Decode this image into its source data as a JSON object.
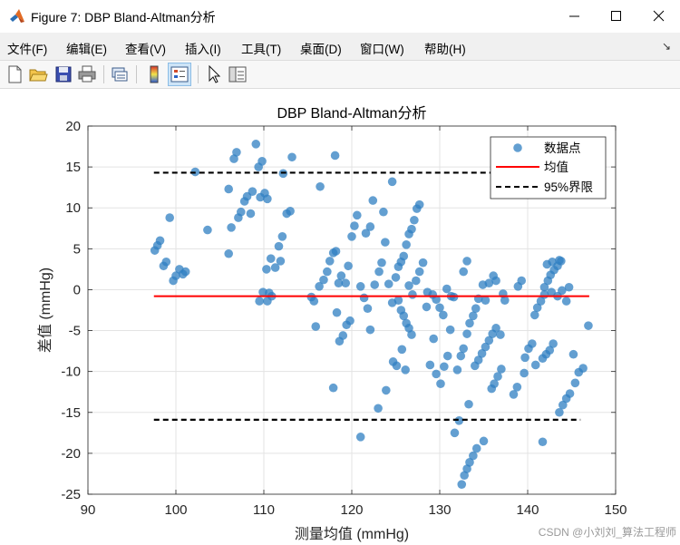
{
  "window": {
    "title": "Figure 7: DBP Bland-Altman分析"
  },
  "menu": {
    "items": [
      "文件(F)",
      "编辑(E)",
      "查看(V)",
      "插入(I)",
      "工具(T)",
      "桌面(D)",
      "窗口(W)",
      "帮助(H)"
    ]
  },
  "toolbar": {
    "icons": [
      "new-figure-icon",
      "open-file-icon",
      "save-icon",
      "print-icon",
      "link-axes-icon",
      "colorbar-icon",
      "legend-icon",
      "pointer-icon",
      "property-inspector-icon"
    ]
  },
  "watermark": "CSDN @小刘刘_算法工程师",
  "colors": {
    "points": "#2f7fc1",
    "mean_line": "#ff0000",
    "limit_lines": "#000000"
  },
  "chart_data": {
    "type": "scatter",
    "title": "DBP Bland-Altman分析",
    "xlabel": "测量均值 (mmHg)",
    "ylabel": "差值 (mmHg)",
    "xlim": [
      90,
      150
    ],
    "ylim": [
      -25,
      20
    ],
    "xticks": [
      90,
      100,
      110,
      120,
      130,
      140,
      150
    ],
    "yticks": [
      -25,
      -20,
      -15,
      -10,
      -5,
      0,
      5,
      10,
      15,
      20
    ],
    "grid": true,
    "legend_position": "top-right",
    "legend": [
      "数据点",
      "均值",
      "95%界限"
    ],
    "mean": {
      "value": -0.8,
      "x_range": [
        97.5,
        147
      ]
    },
    "limits": {
      "upper": 14.3,
      "lower": -15.9,
      "x_range": [
        97.5,
        146
      ]
    },
    "series": [
      {
        "name": "数据点",
        "points": [
          [
            97.6,
            4.8
          ],
          [
            97.9,
            5.4
          ],
          [
            98.2,
            6
          ],
          [
            98.6,
            2.9
          ],
          [
            98.9,
            3.4
          ],
          [
            99.3,
            8.8
          ],
          [
            99.7,
            1.1
          ],
          [
            100,
            1.7
          ],
          [
            100.4,
            2.5
          ],
          [
            100.8,
            1.9
          ],
          [
            101.1,
            2.2
          ],
          [
            102.2,
            14.4
          ],
          [
            103.6,
            7.3
          ],
          [
            106,
            12.3
          ],
          [
            106,
            4.4
          ],
          [
            106.3,
            7.6
          ],
          [
            106.6,
            16
          ],
          [
            106.9,
            16.8
          ],
          [
            107.1,
            8.8
          ],
          [
            107.4,
            9.5
          ],
          [
            107.8,
            10.8
          ],
          [
            108.1,
            11.4
          ],
          [
            108.5,
            9.3
          ],
          [
            108.7,
            12
          ],
          [
            109.1,
            17.8
          ],
          [
            109.4,
            15
          ],
          [
            109.6,
            11.3
          ],
          [
            109.8,
            15.7
          ],
          [
            110.1,
            11.8
          ],
          [
            110.4,
            11.1
          ],
          [
            109.5,
            -1.4
          ],
          [
            109.9,
            -0.3
          ],
          [
            110.4,
            -1.4
          ],
          [
            110.6,
            -0.4
          ],
          [
            110.9,
            -0.8
          ],
          [
            110.3,
            2.5
          ],
          [
            110.8,
            3.8
          ],
          [
            111.3,
            2.7
          ],
          [
            111.7,
            5.3
          ],
          [
            112.1,
            6.5
          ],
          [
            111.9,
            3.5
          ],
          [
            112.2,
            14.2
          ],
          [
            112.6,
            9.3
          ],
          [
            113,
            9.6
          ],
          [
            113.2,
            16.2
          ],
          [
            115.4,
            -0.9
          ],
          [
            115.7,
            -1.4
          ],
          [
            115.9,
            -4.5
          ],
          [
            116.3,
            0.4
          ],
          [
            116.8,
            1.2
          ],
          [
            117.2,
            2.2
          ],
          [
            117.5,
            3.5
          ],
          [
            117.9,
            4.5
          ],
          [
            118.2,
            4.7
          ],
          [
            118.5,
            0.8
          ],
          [
            118.8,
            1.7
          ],
          [
            118.1,
            16.4
          ],
          [
            116.4,
            12.6
          ],
          [
            117.9,
            -12
          ],
          [
            118.3,
            -2.8
          ],
          [
            118.6,
            -6.3
          ],
          [
            119,
            -5.6
          ],
          [
            119.4,
            -4.3
          ],
          [
            119.8,
            -3.8
          ],
          [
            119.3,
            0.8
          ],
          [
            119.6,
            2.9
          ],
          [
            120,
            6.5
          ],
          [
            120.3,
            7.8
          ],
          [
            120.6,
            9.1
          ],
          [
            121,
            0.4
          ],
          [
            121.4,
            -1
          ],
          [
            121.8,
            -2.3
          ],
          [
            122.1,
            -4.9
          ],
          [
            121,
            -18
          ],
          [
            121.6,
            6.9
          ],
          [
            122.1,
            7.7
          ],
          [
            122.4,
            10.9
          ],
          [
            122.6,
            0.6
          ],
          [
            123.1,
            2.2
          ],
          [
            123.4,
            3.3
          ],
          [
            123.6,
            9.5
          ],
          [
            123.8,
            5.8
          ],
          [
            124.2,
            0.7
          ],
          [
            124.6,
            -1.6
          ],
          [
            123,
            -14.5
          ],
          [
            123.9,
            -12.3
          ],
          [
            124.7,
            -8.8
          ],
          [
            125.1,
            -9.3
          ],
          [
            124.6,
            13.2
          ],
          [
            125,
            1.5
          ],
          [
            125.3,
            2.8
          ],
          [
            125.6,
            3.4
          ],
          [
            125.9,
            4.1
          ],
          [
            126.2,
            5.5
          ],
          [
            126.5,
            6.8
          ],
          [
            126.8,
            7.4
          ],
          [
            127.1,
            8.5
          ],
          [
            127.4,
            9.9
          ],
          [
            127.7,
            10.4
          ],
          [
            125.3,
            -1.3
          ],
          [
            125.6,
            -2.5
          ],
          [
            125.9,
            -3.2
          ],
          [
            126.2,
            -4.1
          ],
          [
            126.5,
            -4.7
          ],
          [
            126.8,
            -5.5
          ],
          [
            125.7,
            -7.3
          ],
          [
            126.1,
            -9.8
          ],
          [
            126.5,
            0.5
          ],
          [
            126.9,
            -0.6
          ],
          [
            127.3,
            1.1
          ],
          [
            127.7,
            2.2
          ],
          [
            128.1,
            3.3
          ],
          [
            128.5,
            -2.1
          ],
          [
            128.9,
            -9.2
          ],
          [
            129.3,
            -6
          ],
          [
            128.6,
            -0.3
          ],
          [
            129.2,
            -0.6
          ],
          [
            129.6,
            -1.2
          ],
          [
            130,
            -2.2
          ],
          [
            130.4,
            -3.1
          ],
          [
            129.6,
            -10.3
          ],
          [
            130.1,
            -11.5
          ],
          [
            130.5,
            -9.4
          ],
          [
            130.9,
            -8.1
          ],
          [
            131.2,
            -4.9
          ],
          [
            130.8,
            0.1
          ],
          [
            131.3,
            -0.8
          ],
          [
            131.7,
            -17.5
          ],
          [
            132.2,
            -16
          ],
          [
            132,
            -9.8
          ],
          [
            132.4,
            -8.1
          ],
          [
            132.7,
            -7.2
          ],
          [
            133.1,
            -5.4
          ],
          [
            133.4,
            -4.1
          ],
          [
            133.8,
            -3.2
          ],
          [
            134.1,
            -2.3
          ],
          [
            134.4,
            -1.1
          ],
          [
            132.5,
            -23.8
          ],
          [
            132.8,
            -22.7
          ],
          [
            133.1,
            -21.9
          ],
          [
            133.4,
            -21.1
          ],
          [
            133.8,
            -20.3
          ],
          [
            134.2,
            -19.4
          ],
          [
            133.3,
            -14
          ],
          [
            135,
            -18.5
          ],
          [
            134,
            -9.3
          ],
          [
            134.4,
            -8.6
          ],
          [
            134.8,
            -7.8
          ],
          [
            135.2,
            -7
          ],
          [
            135.6,
            -6.2
          ],
          [
            136,
            -5.4
          ],
          [
            136.4,
            -4.7
          ],
          [
            132.7,
            2.2
          ],
          [
            133.1,
            3.5
          ],
          [
            135.6,
            0.8
          ],
          [
            136.1,
            1.7
          ],
          [
            136.4,
            1.1
          ],
          [
            135.9,
            -12.1
          ],
          [
            136.2,
            -11.5
          ],
          [
            136.6,
            -10.6
          ],
          [
            137,
            -9.7
          ],
          [
            136.9,
            -5.5
          ],
          [
            137.4,
            -1.3
          ],
          [
            138.4,
            -12.8
          ],
          [
            138.8,
            -11.9
          ],
          [
            139.3,
            1.1
          ],
          [
            139.6,
            -10.2
          ],
          [
            139.7,
            -8.3
          ],
          [
            140.1,
            -7.2
          ],
          [
            140.5,
            -6.6
          ],
          [
            140.8,
            -3.1
          ],
          [
            141.1,
            -2.2
          ],
          [
            141.5,
            -1.4
          ],
          [
            141.9,
            0.3
          ],
          [
            142.3,
            1.1
          ],
          [
            142.6,
            1.8
          ],
          [
            143,
            2.4
          ],
          [
            143.4,
            2.9
          ],
          [
            143.8,
            3.5
          ],
          [
            141.7,
            -8.4
          ],
          [
            142.1,
            -7.9
          ],
          [
            142.5,
            -7.4
          ],
          [
            142.9,
            -6.6
          ],
          [
            140.9,
            -9.2
          ],
          [
            141.7,
            -18.6
          ],
          [
            143.6,
            -15
          ],
          [
            144,
            -14.1
          ],
          [
            144.4,
            -13.3
          ],
          [
            144.8,
            -12.7
          ],
          [
            145.4,
            -11.4
          ],
          [
            145.8,
            -10.1
          ],
          [
            146.3,
            -9.6
          ],
          [
            145.2,
            -7.9
          ],
          [
            146.9,
            -4.4
          ],
          [
            141.9,
            -0.6
          ],
          [
            142.7,
            -0.3
          ],
          [
            143.4,
            -0.8
          ],
          [
            143.9,
            -0.1
          ],
          [
            144.4,
            -1.4
          ],
          [
            144.7,
            0.3
          ],
          [
            142.2,
            3.1
          ],
          [
            142.8,
            3.4
          ],
          [
            143.6,
            3.6
          ],
          [
            138.9,
            0.4
          ],
          [
            137.2,
            -0.5
          ],
          [
            135.2,
            -1.3
          ],
          [
            131.6,
            -0.9
          ],
          [
            134.9,
            0.6
          ]
        ]
      }
    ]
  }
}
